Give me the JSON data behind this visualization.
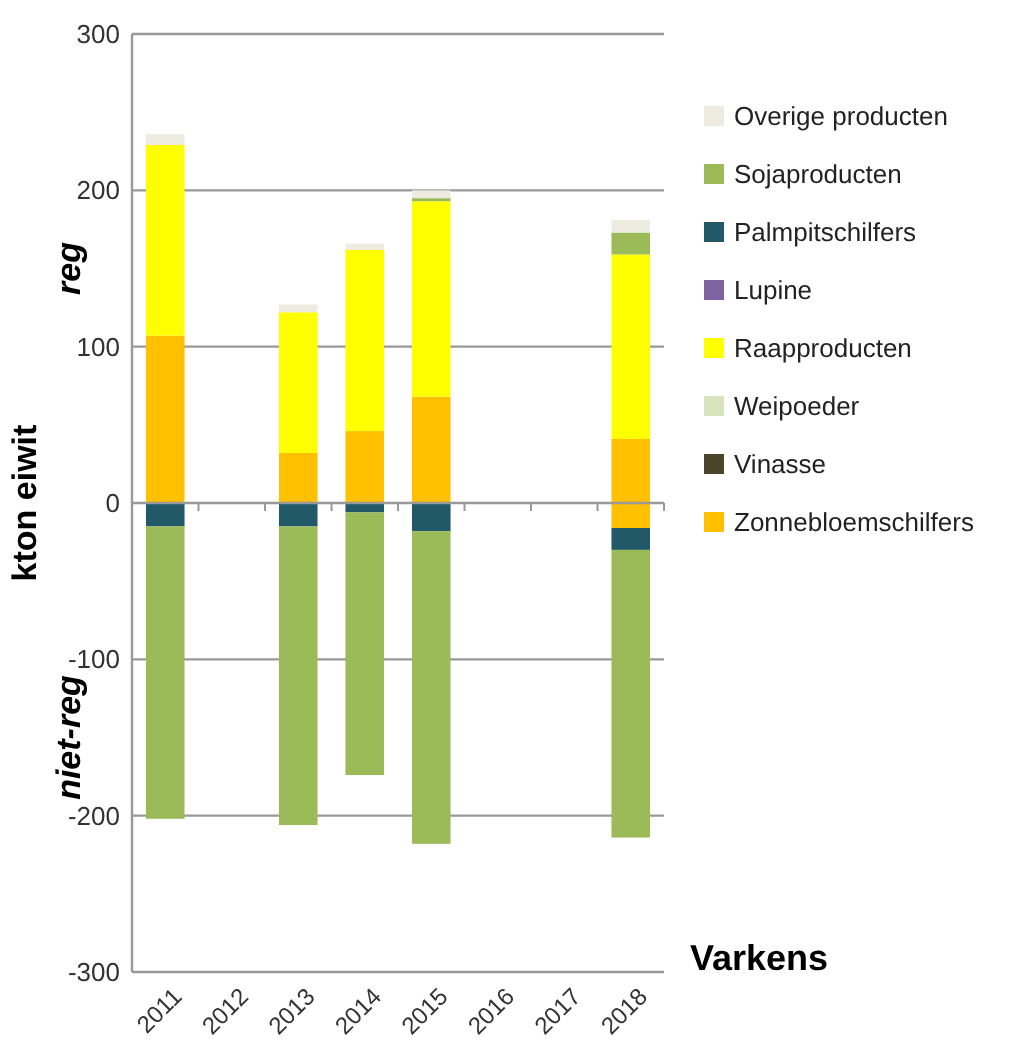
{
  "chart_data": {
    "type": "bar",
    "stacked": true,
    "ylabel": "kton eiwit",
    "categories": [
      "2011",
      "2012",
      "2013",
      "2014",
      "2015",
      "2016",
      "2017",
      "2018"
    ],
    "ylim": [
      -300,
      300
    ],
    "yticks": [
      -300,
      -200,
      -100,
      0,
      100,
      200,
      300
    ],
    "grid": "y",
    "legend": "right",
    "annotations": [
      "reg",
      "niet-reg",
      "Varkens"
    ],
    "series": [
      {
        "name": "Zonnebloemschilfers",
        "color": "#ffc000",
        "values": [
          107,
          null,
          32,
          46,
          68,
          null,
          null,
          41
        ]
      },
      {
        "name": "Vinasse",
        "color": "#4a452a",
        "values": [
          0,
          null,
          0,
          0,
          0,
          null,
          null,
          0
        ]
      },
      {
        "name": "Weipoeder",
        "color": "#d7e4bd",
        "values": [
          null,
          null,
          null,
          null,
          null,
          null,
          null,
          null
        ]
      },
      {
        "name": "Raapproducten",
        "color": "#ffff00",
        "values": [
          122,
          null,
          90,
          116,
          125,
          null,
          null,
          118
        ]
      },
      {
        "name": "Lupine",
        "color": "#8064a2",
        "values": [
          0,
          null,
          0,
          0,
          0,
          null,
          null,
          0
        ]
      },
      {
        "name": "Palmpitschilfers",
        "color": "#215968",
        "values": [
          0,
          null,
          0,
          0,
          0,
          null,
          null,
          0
        ]
      },
      {
        "name": "Sojaproducten",
        "color": "#9bbb59",
        "values": [
          0,
          null,
          0,
          0,
          2,
          null,
          null,
          14
        ]
      },
      {
        "name": "Overige producten",
        "color": "#eeece1",
        "values": [
          7,
          null,
          5,
          4,
          5,
          null,
          null,
          8
        ]
      },
      {
        "color": "#ffc000",
        "values": [
          0,
          null,
          0,
          0,
          0,
          null,
          null,
          -16
        ]
      },
      {
        "color": "#215968",
        "values": [
          -15,
          null,
          -15,
          -6,
          -18,
          null,
          null,
          -14
        ]
      },
      {
        "color": "#9bbb59",
        "values": [
          -187,
          null,
          -191,
          -168,
          -200,
          null,
          null,
          -184
        ]
      }
    ]
  }
}
